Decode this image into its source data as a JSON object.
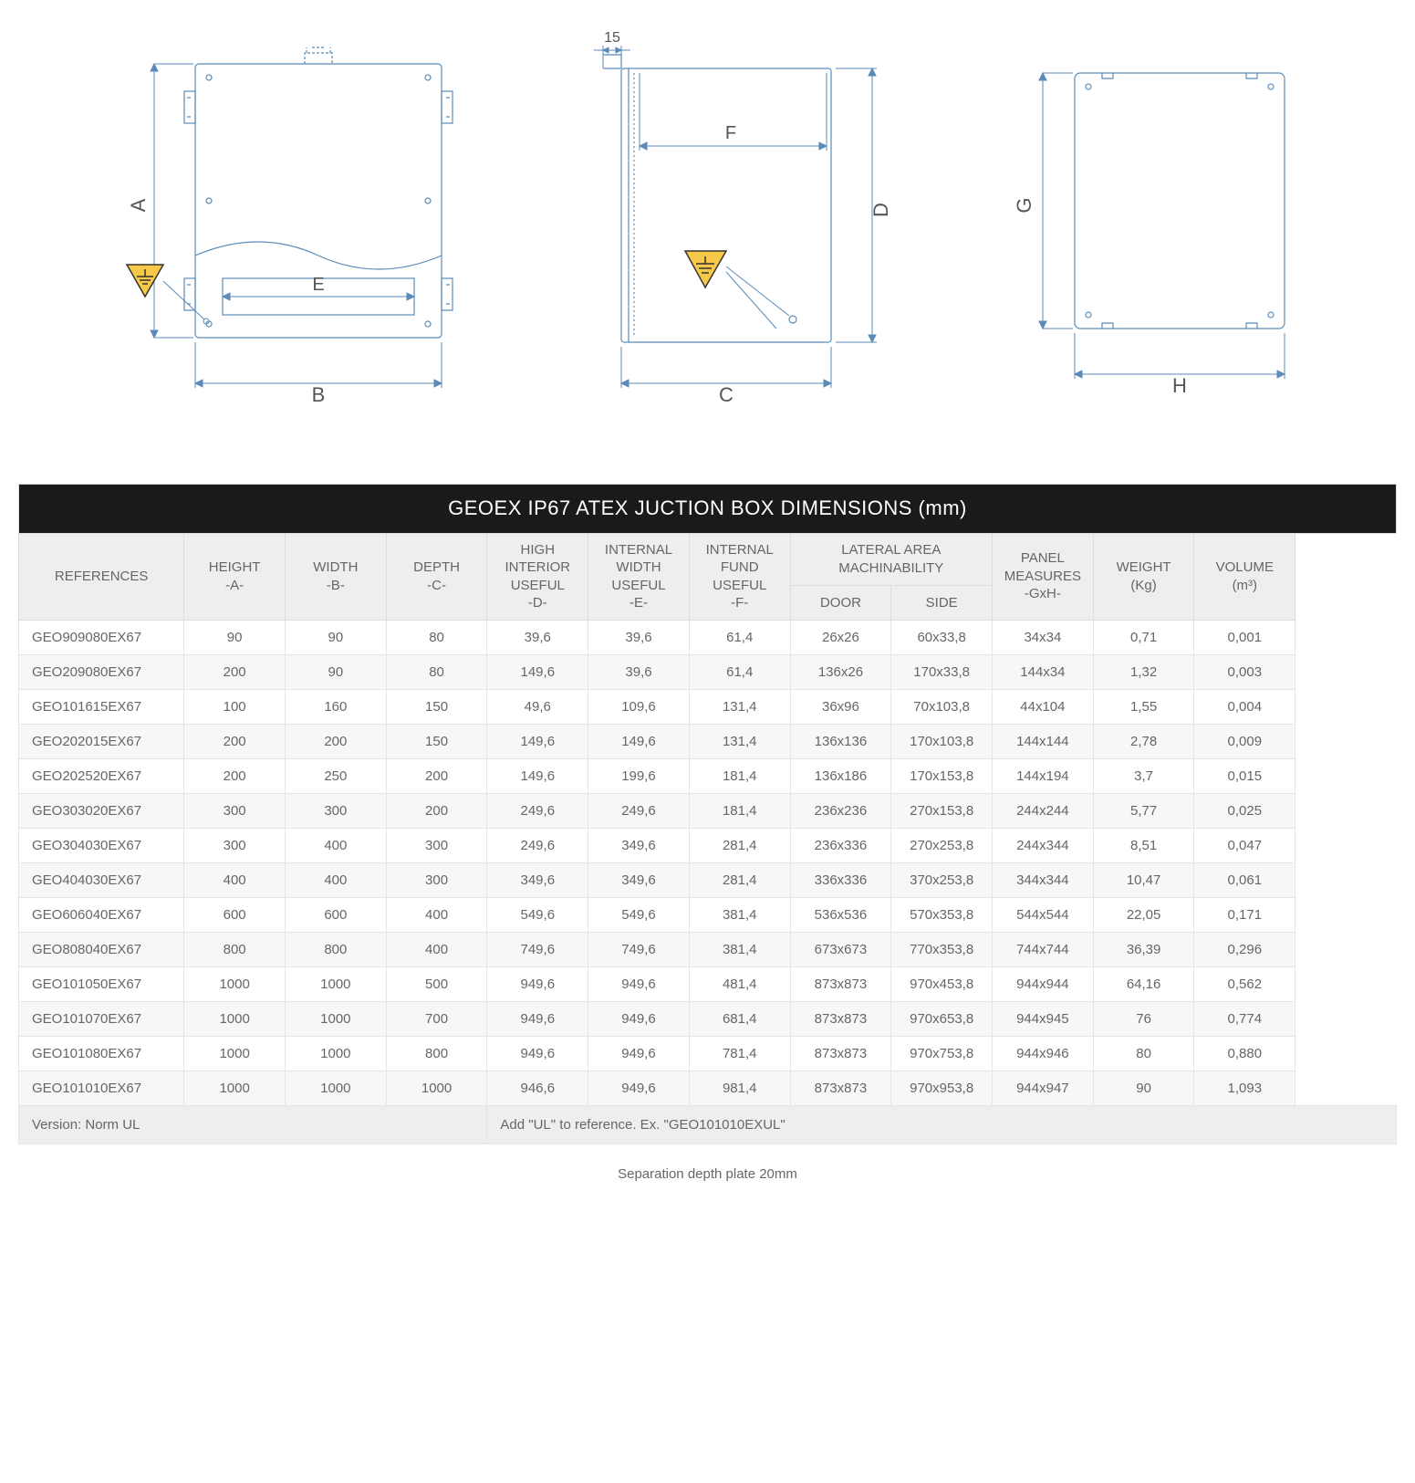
{
  "diagrams": {
    "fixed_dim_label": "15",
    "labels": {
      "A": "A",
      "B": "B",
      "C": "C",
      "D": "D",
      "E": "E",
      "F": "F",
      "G": "G",
      "H": "H"
    },
    "colors": {
      "line": "#5b8bb8",
      "line_thin": "#7aa3c9",
      "ground_fill": "#f7c948",
      "ground_stroke": "#333333",
      "text": "#555555"
    },
    "stroke_width": 1.2
  },
  "table": {
    "title": "GEOEX IP67 ATEX JUCTION BOX DIMENSIONS (mm)",
    "headers": {
      "references": "REFERENCES",
      "height": "HEIGHT\n-A-",
      "width": "WIDTH\n-B-",
      "depth": "DEPTH\n-C-",
      "high_interior": "HIGH\nINTERIOR\nUSEFUL\n-D-",
      "internal_width": "INTERNAL\nWIDTH\nUSEFUL\n-E-",
      "internal_fund": "INTERNAL\nFUND\nUSEFUL\n-F-",
      "lateral_group": "LATERAL AREA\nMACHINABILITY",
      "door": "DOOR",
      "side": "SIDE",
      "panel": "PANEL\nMEASURES\n-GxH-",
      "weight": "WEIGHT\n(Kg)",
      "volume": "VOLUME\n(m³)"
    },
    "rows": [
      [
        "GEO909080EX67",
        "90",
        "90",
        "80",
        "39,6",
        "39,6",
        "61,4",
        "26x26",
        "60x33,8",
        "34x34",
        "0,71",
        "0,001"
      ],
      [
        "GEO209080EX67",
        "200",
        "90",
        "80",
        "149,6",
        "39,6",
        "61,4",
        "136x26",
        "170x33,8",
        "144x34",
        "1,32",
        "0,003"
      ],
      [
        "GEO101615EX67",
        "100",
        "160",
        "150",
        "49,6",
        "109,6",
        "131,4",
        "36x96",
        "70x103,8",
        "44x104",
        "1,55",
        "0,004"
      ],
      [
        "GEO202015EX67",
        "200",
        "200",
        "150",
        "149,6",
        "149,6",
        "131,4",
        "136x136",
        "170x103,8",
        "144x144",
        "2,78",
        "0,009"
      ],
      [
        "GEO202520EX67",
        "200",
        "250",
        "200",
        "149,6",
        "199,6",
        "181,4",
        "136x186",
        "170x153,8",
        "144x194",
        "3,7",
        "0,015"
      ],
      [
        "GEO303020EX67",
        "300",
        "300",
        "200",
        "249,6",
        "249,6",
        "181,4",
        "236x236",
        "270x153,8",
        "244x244",
        "5,77",
        "0,025"
      ],
      [
        "GEO304030EX67",
        "300",
        "400",
        "300",
        "249,6",
        "349,6",
        "281,4",
        "236x336",
        "270x253,8",
        "244x344",
        "8,51",
        "0,047"
      ],
      [
        "GEO404030EX67",
        "400",
        "400",
        "300",
        "349,6",
        "349,6",
        "281,4",
        "336x336",
        "370x253,8",
        "344x344",
        "10,47",
        "0,061"
      ],
      [
        "GEO606040EX67",
        "600",
        "600",
        "400",
        "549,6",
        "549,6",
        "381,4",
        "536x536",
        "570x353,8",
        "544x544",
        "22,05",
        "0,171"
      ],
      [
        "GEO808040EX67",
        "800",
        "800",
        "400",
        "749,6",
        "749,6",
        "381,4",
        "673x673",
        "770x353,8",
        "744x744",
        "36,39",
        "0,296"
      ],
      [
        "GEO101050EX67",
        "1000",
        "1000",
        "500",
        "949,6",
        "949,6",
        "481,4",
        "873x873",
        "970x453,8",
        "944x944",
        "64,16",
        "0,562"
      ],
      [
        "GEO101070EX67",
        "1000",
        "1000",
        "700",
        "949,6",
        "949,6",
        "681,4",
        "873x873",
        "970x653,8",
        "944x945",
        "76",
        "0,774"
      ],
      [
        "GEO101080EX67",
        "1000",
        "1000",
        "800",
        "949,6",
        "949,6",
        "781,4",
        "873x873",
        "970x753,8",
        "944x946",
        "80",
        "0,880"
      ],
      [
        "GEO101010EX67",
        "1000",
        "1000",
        "1000",
        "946,6",
        "949,6",
        "981,4",
        "873x873",
        "970x953,8",
        "944x947",
        "90",
        "1,093"
      ]
    ],
    "footer_left": "Version: Norm UL",
    "footer_right": "Add \"UL\" to reference. Ex. \"GEO101010EXUL\"",
    "separation_note": "Separation depth plate 20mm"
  }
}
